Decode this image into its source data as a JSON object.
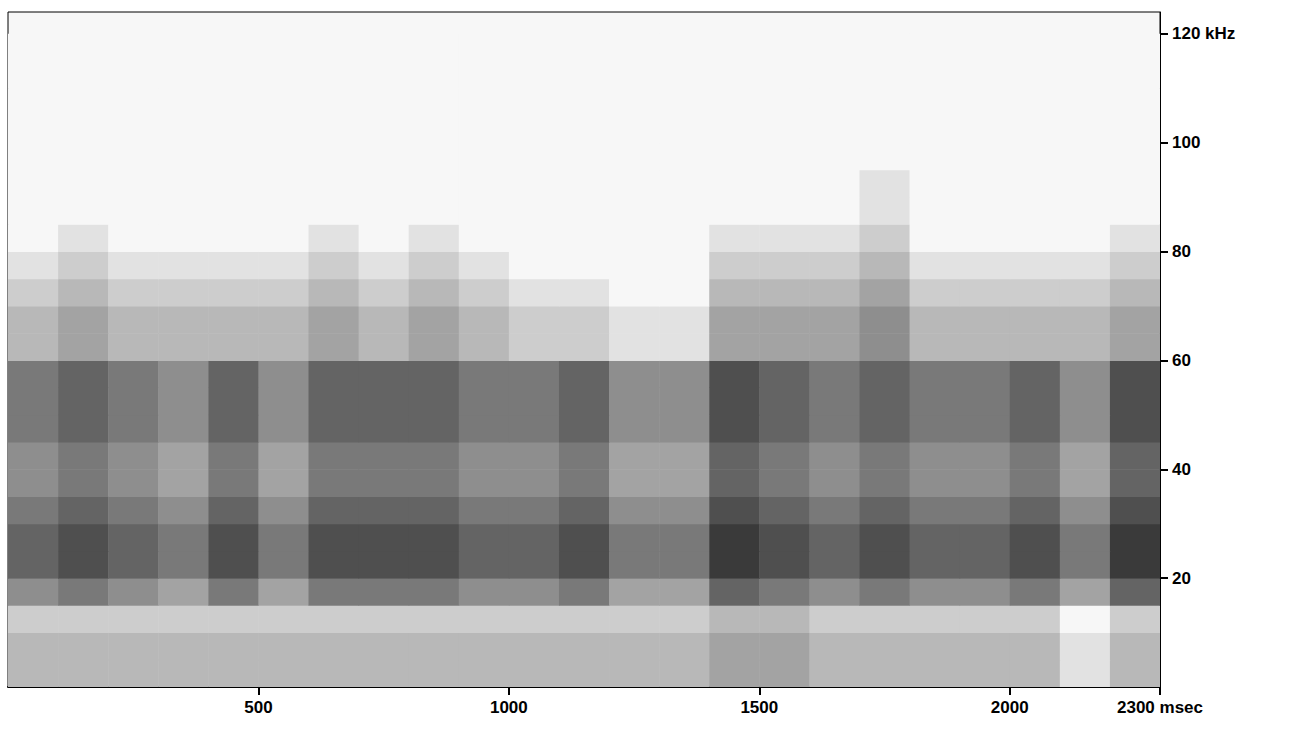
{
  "chart_data": {
    "type": "heatmap",
    "xlim": [
      0,
      2300
    ],
    "ylim": [
      0,
      124
    ],
    "xticks": [
      500,
      1000,
      1500,
      2000,
      {
        "value": 2300,
        "label": "2300 msec"
      }
    ],
    "yticks": [
      20,
      40,
      60,
      80,
      100,
      {
        "value": 120,
        "label": "120 kHz"
      }
    ],
    "grid": false,
    "color": "#000000",
    "zlim": [
      0,
      10
    ],
    "x_bins": [
      0,
      100,
      200,
      300,
      400,
      500,
      600,
      700,
      800,
      900,
      1000,
      1100,
      1200,
      1300,
      1400,
      1500,
      1600,
      1700,
      1800,
      1900,
      2000,
      2100,
      2200,
      2300
    ],
    "y_bins": [
      0,
      5,
      10,
      15,
      20,
      25,
      30,
      35,
      40,
      45,
      50,
      55,
      60,
      65,
      70,
      75,
      80,
      85,
      90,
      95,
      100,
      105,
      110,
      115,
      120
    ],
    "values": [
      [
        3,
        3,
        3,
        3,
        3,
        3,
        3,
        3,
        3,
        3,
        3,
        3,
        3,
        3,
        4,
        4,
        3,
        3,
        3,
        3,
        3,
        1,
        3
      ],
      [
        3,
        3,
        3,
        3,
        3,
        3,
        3,
        3,
        3,
        3,
        3,
        3,
        3,
        3,
        4,
        4,
        3,
        3,
        3,
        3,
        3,
        1,
        3
      ],
      [
        2,
        2,
        2,
        2,
        2,
        2,
        2,
        2,
        2,
        2,
        2,
        2,
        2,
        2,
        3,
        3,
        2,
        2,
        2,
        2,
        2,
        0,
        2
      ],
      [
        5,
        6,
        5,
        4,
        6,
        4,
        6,
        6,
        6,
        5,
        5,
        6,
        4,
        4,
        7,
        6,
        5,
        6,
        5,
        5,
        6,
        4,
        7
      ],
      [
        7,
        8,
        7,
        6,
        8,
        6,
        8,
        8,
        8,
        7,
        7,
        8,
        6,
        6,
        9,
        8,
        7,
        8,
        7,
        7,
        8,
        6,
        9
      ],
      [
        7,
        8,
        7,
        6,
        8,
        6,
        8,
        8,
        8,
        7,
        7,
        8,
        6,
        6,
        9,
        8,
        7,
        8,
        7,
        7,
        8,
        6,
        9
      ],
      [
        6,
        7,
        6,
        5,
        7,
        5,
        7,
        7,
        7,
        6,
        6,
        7,
        5,
        5,
        8,
        7,
        6,
        7,
        6,
        6,
        7,
        5,
        8
      ],
      [
        5,
        6,
        5,
        4,
        6,
        4,
        6,
        6,
        6,
        5,
        5,
        6,
        4,
        4,
        7,
        6,
        5,
        6,
        5,
        5,
        6,
        4,
        7
      ],
      [
        5,
        6,
        5,
        4,
        6,
        4,
        6,
        6,
        6,
        5,
        5,
        6,
        4,
        4,
        7,
        6,
        5,
        6,
        5,
        5,
        6,
        4,
        7
      ],
      [
        6,
        7,
        6,
        5,
        7,
        5,
        7,
        7,
        7,
        6,
        6,
        7,
        5,
        5,
        8,
        7,
        6,
        7,
        6,
        6,
        7,
        5,
        8
      ],
      [
        6,
        7,
        6,
        5,
        7,
        5,
        7,
        7,
        7,
        6,
        6,
        7,
        5,
        5,
        8,
        7,
        6,
        7,
        6,
        6,
        7,
        5,
        8
      ],
      [
        6,
        7,
        6,
        5,
        7,
        5,
        7,
        7,
        7,
        6,
        6,
        7,
        5,
        5,
        8,
        7,
        6,
        7,
        6,
        6,
        7,
        5,
        8
      ],
      [
        3,
        4,
        3,
        3,
        3,
        3,
        4,
        3,
        4,
        3,
        2,
        2,
        1,
        1,
        4,
        4,
        4,
        5,
        3,
        3,
        3,
        3,
        4
      ],
      [
        3,
        4,
        3,
        3,
        3,
        3,
        4,
        3,
        4,
        3,
        2,
        2,
        1,
        1,
        4,
        4,
        4,
        5,
        3,
        3,
        3,
        3,
        4
      ],
      [
        2,
        3,
        2,
        2,
        2,
        2,
        3,
        2,
        3,
        2,
        1,
        1,
        0,
        0,
        3,
        3,
        3,
        4,
        2,
        2,
        2,
        2,
        3
      ],
      [
        1,
        2,
        1,
        1,
        1,
        1,
        2,
        1,
        2,
        1,
        0,
        0,
        0,
        0,
        2,
        2,
        2,
        3,
        1,
        1,
        1,
        1,
        2
      ],
      [
        0,
        1,
        0,
        0,
        0,
        0,
        1,
        0,
        1,
        0,
        0,
        0,
        0,
        0,
        1,
        1,
        1,
        2,
        0,
        0,
        0,
        0,
        1
      ],
      [
        0,
        0,
        0,
        0,
        0,
        0,
        0,
        0,
        0,
        0,
        0,
        0,
        0,
        0,
        0,
        0,
        0,
        1,
        0,
        0,
        0,
        0,
        0
      ],
      [
        0,
        0,
        0,
        0,
        0,
        0,
        0,
        0,
        0,
        0,
        0,
        0,
        0,
        0,
        0,
        0,
        0,
        1,
        0,
        0,
        0,
        0,
        0
      ],
      [
        0,
        0,
        0,
        0,
        0,
        0,
        0,
        0,
        0,
        0,
        0,
        0,
        0,
        0,
        0,
        0,
        0,
        0,
        0,
        0,
        0,
        0,
        0
      ],
      [
        0,
        0,
        0,
        0,
        0,
        0,
        0,
        0,
        0,
        0,
        0,
        0,
        0,
        0,
        0,
        0,
        0,
        0,
        0,
        0,
        0,
        0,
        0
      ],
      [
        0,
        0,
        0,
        0,
        0,
        0,
        0,
        0,
        0,
        0,
        0,
        0,
        0,
        0,
        0,
        0,
        0,
        0,
        0,
        0,
        0,
        0,
        0
      ],
      [
        0,
        0,
        0,
        0,
        0,
        0,
        0,
        0,
        0,
        0,
        0,
        0,
        0,
        0,
        0,
        0,
        0,
        0,
        0,
        0,
        0,
        0,
        0
      ],
      [
        0,
        0,
        0,
        0,
        0,
        0,
        0,
        0,
        0,
        0,
        0,
        0,
        0,
        0,
        0,
        0,
        0,
        0,
        0,
        0,
        0,
        0,
        0
      ]
    ]
  }
}
